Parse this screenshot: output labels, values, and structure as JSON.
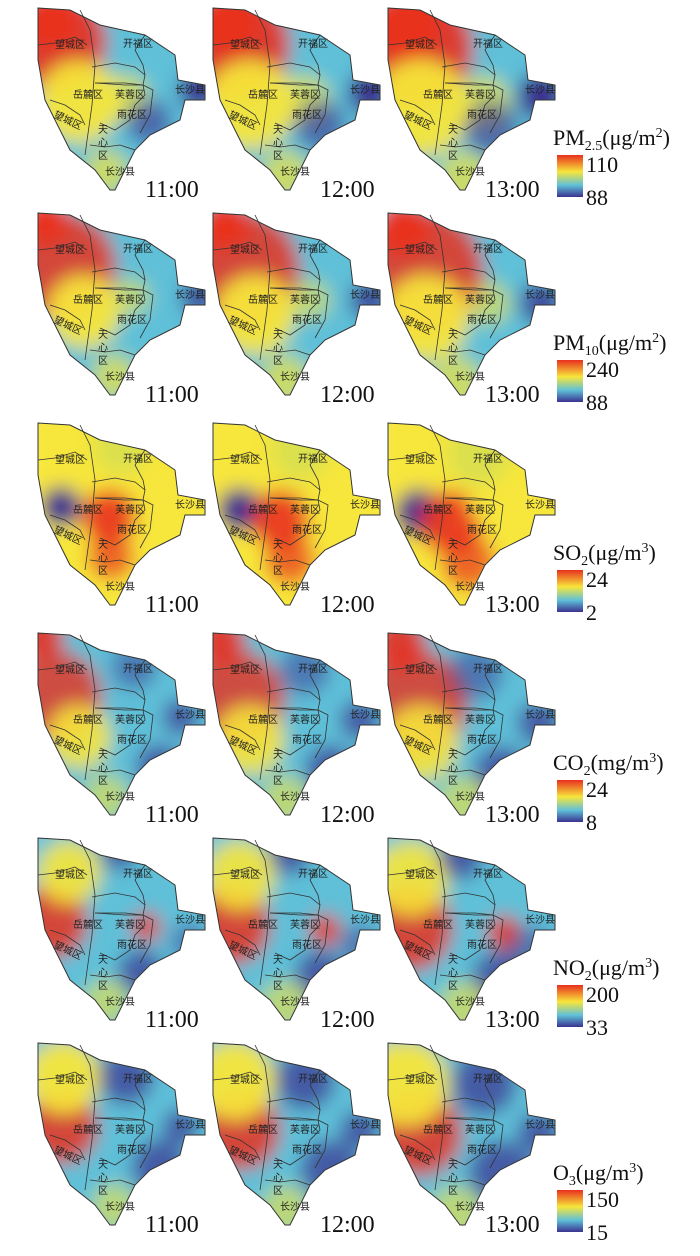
{
  "times": [
    "11:00",
    "12:00",
    "13:00"
  ],
  "districts": {
    "wangcheng": "望城区",
    "kaifu": "开福区",
    "yuelu": "岳麓区",
    "furong": "芙蓉区",
    "changsha_county": "长沙县",
    "yuhua": "雨花区",
    "wangcheng_lower": "望城区",
    "tianxin": "天心区",
    "changsha_county_lower": "长沙县"
  },
  "rows": [
    {
      "pollutant": "PM",
      "subscript": "2.5",
      "unit": "(μg/m",
      "superscript": "2",
      "close": ")",
      "max": "110",
      "min": "88",
      "scheme": "pm"
    },
    {
      "pollutant": "PM",
      "subscript": "10",
      "unit": "(μg/m",
      "superscript": "2",
      "close": ")",
      "max": "240",
      "min": "88",
      "scheme": "pm10"
    },
    {
      "pollutant": "SO",
      "subscript": "2",
      "unit": "(μg/m",
      "superscript": "3",
      "close": ")",
      "max": "24",
      "min": "2",
      "scheme": "so2"
    },
    {
      "pollutant": "CO",
      "subscript": "2",
      "unit": "(mg/m",
      "superscript": "3",
      "close": ")",
      "max": "24",
      "min": "8",
      "scheme": "co2"
    },
    {
      "pollutant": "NO",
      "subscript": "2",
      "unit": "(μg/m",
      "superscript": "3",
      "close": ")",
      "max": "200",
      "min": "33",
      "scheme": "no2"
    },
    {
      "pollutant": "O",
      "subscript": "3",
      "unit": "(μg/m",
      "superscript": "3",
      "close": ")",
      "max": "150",
      "min": "15",
      "scheme": "o3"
    }
  ],
  "colors": {
    "high": "#e8301e",
    "mid_high": "#f7e63a",
    "mid_low": "#5fc0d8",
    "low": "#3a3290"
  }
}
